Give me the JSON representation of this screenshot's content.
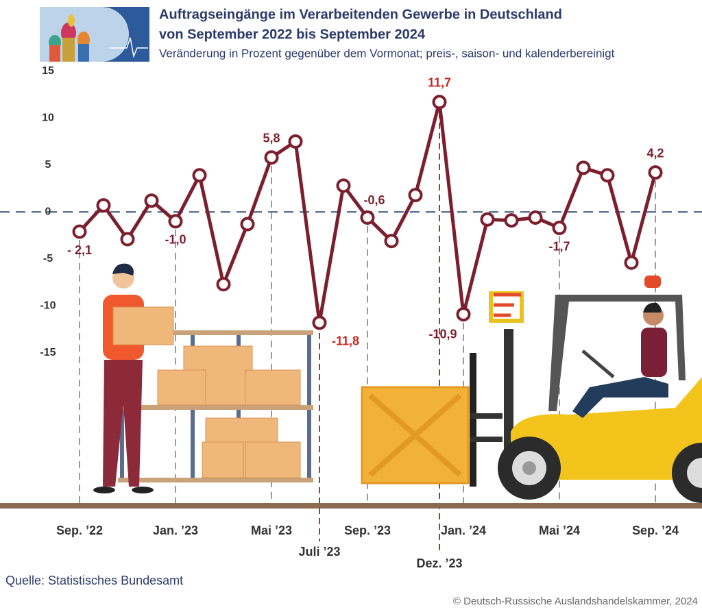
{
  "chart_data": {
    "type": "line",
    "title": [
      "Auftragseingänge im Verarbeitenden Gewerbe in Deutschland",
      "von September 2022 bis September 2024"
    ],
    "subtitle": "Veränderung in Prozent gegenüber dem Vormonat; preis-, saison- und kalenderbereinigt",
    "categories": [
      "Sep. ’22",
      null,
      null,
      null,
      "Jan. ’23",
      null,
      null,
      null,
      "Mai ’23",
      null,
      "Juli ’23",
      null,
      "Sep. ’23",
      null,
      null,
      "Dez. ’23",
      "Jan. ’24",
      null,
      null,
      null,
      "Mai ’24",
      null,
      null,
      null,
      "Sep. ’24"
    ],
    "series": [
      {
        "name": "Auftragseingänge",
        "color": "#7b1f2e",
        "values": [
          -2.1,
          0.7,
          -2.9,
          1.2,
          -1.0,
          3.9,
          -7.7,
          -1.3,
          5.8,
          7.5,
          -11.8,
          2.8,
          -0.6,
          -3.1,
          1.8,
          11.7,
          -10.9,
          -0.8,
          -0.9,
          -0.6,
          -1.7,
          4.7,
          3.9,
          -5.4,
          4.2
        ],
        "value_labels": [
          "- 2,1",
          null,
          null,
          null,
          "-1,0",
          null,
          null,
          null,
          "5,8",
          null,
          "-11,8",
          null,
          "-0,6",
          null,
          null,
          "11,7",
          "-10,9",
          null,
          null,
          null,
          "-1,7",
          null,
          null,
          null,
          "4,2"
        ]
      }
    ],
    "highlight_indices": [
      10,
      15
    ],
    "highlight_color": "#c8281e",
    "ylim": [
      -31,
      16
    ],
    "yticks": [
      15,
      10,
      5,
      0,
      -5,
      -10,
      -15
    ],
    "source": "Quelle: Statistisches Bundesamt",
    "copyright": "© Deutsch-Russische Auslandshandelskammer, 2024"
  }
}
